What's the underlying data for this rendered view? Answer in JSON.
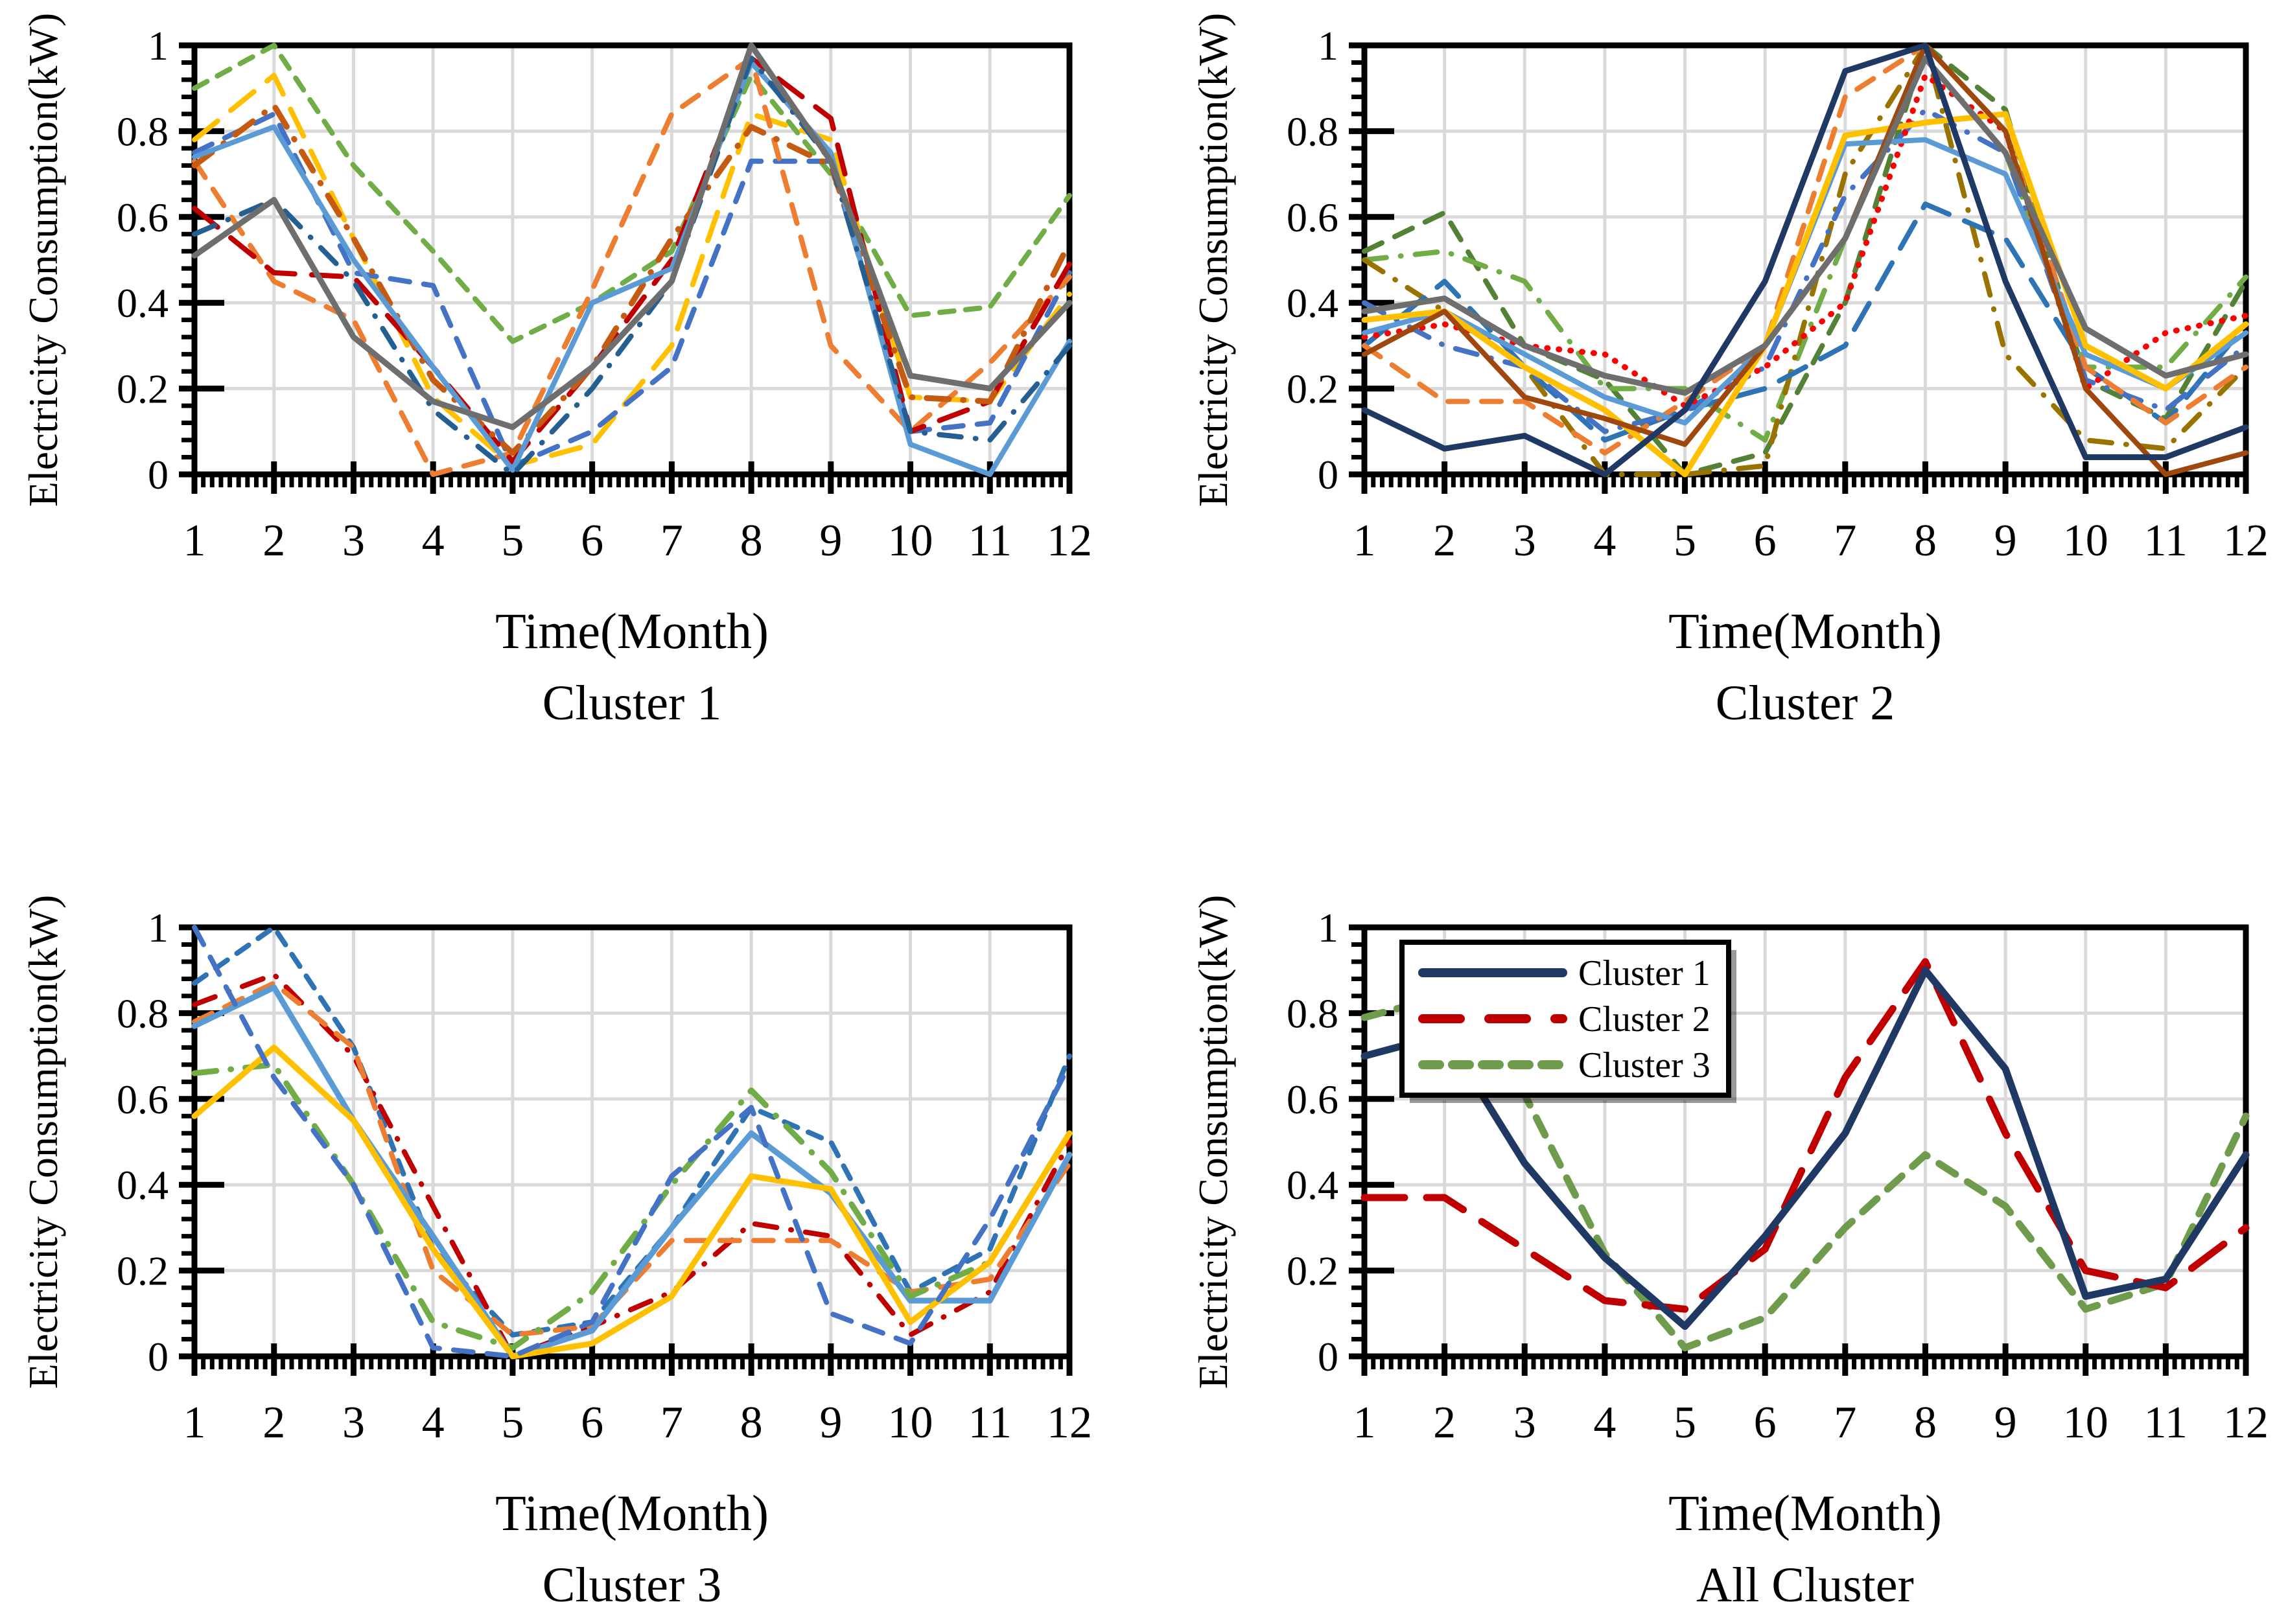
{
  "page": {
    "background": "#FFFFFF"
  },
  "figure": {
    "ylabel": "Electricity Consumption(kW)",
    "xlabel": "Time(Month)",
    "x_ticks": [
      "1",
      "2",
      "3",
      "4",
      "5",
      "6",
      "7",
      "8",
      "9",
      "10",
      "11",
      "12"
    ],
    "y_ticks": [
      "0",
      "0.2",
      "0.4",
      "0.6",
      "0.8",
      "1"
    ],
    "grid_color": "#D9D9D9",
    "axis_color": "#000000"
  },
  "chart_data": [
    {
      "type": "line",
      "title": "Cluster 1",
      "xlabel": "Time(Month)",
      "ylabel": "Electricity Consumption(kW)",
      "x": [
        1,
        2,
        3,
        4,
        5,
        6,
        7,
        8,
        9,
        10,
        11,
        12
      ],
      "ylim": [
        0,
        1
      ],
      "grid": true,
      "legend": null,
      "series": [
        {
          "color": "#70AD47",
          "style": "dash-dense",
          "width": 8,
          "values": [
            0.9,
            1.0,
            0.72,
            0.52,
            0.31,
            0.4,
            0.52,
            0.93,
            0.7,
            0.37,
            0.39,
            0.65
          ]
        },
        {
          "color": "#FFC000",
          "style": "dash-long",
          "width": 8,
          "values": [
            0.78,
            0.93,
            0.55,
            0.18,
            0.02,
            0.07,
            0.3,
            0.84,
            0.78,
            0.18,
            0.17,
            0.42
          ]
        },
        {
          "color": "#4472C4",
          "style": "dash",
          "width": 8,
          "values": [
            0.75,
            0.84,
            0.47,
            0.44,
            0.02,
            0.1,
            0.25,
            0.73,
            0.73,
            0.1,
            0.12,
            0.47
          ]
        },
        {
          "color": "#ED7D31",
          "style": "dash",
          "width": 8,
          "values": [
            0.73,
            0.45,
            0.36,
            0.0,
            0.05,
            0.43,
            0.84,
            0.97,
            0.3,
            0.1,
            0.26,
            0.46
          ]
        },
        {
          "color": "#C00000",
          "style": "dash-long",
          "width": 8,
          "values": [
            0.62,
            0.47,
            0.46,
            0.25,
            0.03,
            0.25,
            0.5,
            0.97,
            0.83,
            0.1,
            0.17,
            0.49
          ]
        },
        {
          "color": "#C55A11",
          "style": "dash-dot",
          "width": 9,
          "values": [
            0.72,
            0.86,
            0.55,
            0.22,
            0.05,
            0.25,
            0.55,
            0.81,
            0.72,
            0.18,
            0.17,
            0.54
          ]
        },
        {
          "color": "#5B9BD5",
          "style": "solid",
          "width": 8,
          "values": [
            0.74,
            0.81,
            0.5,
            0.25,
            0.01,
            0.4,
            0.48,
            0.96,
            0.75,
            0.07,
            0.0,
            0.31
          ]
        },
        {
          "color": "#255E91",
          "style": "dash-dot",
          "width": 8,
          "values": [
            0.56,
            0.64,
            0.45,
            0.15,
            0.0,
            0.2,
            0.45,
            0.97,
            0.73,
            0.1,
            0.08,
            0.3
          ]
        },
        {
          "color": "#6E6E6E",
          "style": "solid",
          "width": 9,
          "values": [
            0.51,
            0.64,
            0.32,
            0.17,
            0.11,
            0.25,
            0.45,
            1.0,
            0.73,
            0.23,
            0.2,
            0.4
          ]
        }
      ]
    },
    {
      "type": "line",
      "title": "Cluster 2",
      "xlabel": "Time(Month)",
      "ylabel": "Electricity Consumption(kW)",
      "x": [
        1,
        2,
        3,
        4,
        5,
        6,
        7,
        8,
        9,
        10,
        11,
        12
      ],
      "ylim": [
        0,
        1
      ],
      "grid": true,
      "legend": null,
      "series": [
        {
          "color": "#538135",
          "style": "dash",
          "width": 8,
          "values": [
            0.52,
            0.61,
            0.3,
            0.22,
            0.0,
            0.05,
            0.4,
            1.0,
            0.85,
            0.22,
            0.13,
            0.45
          ]
        },
        {
          "color": "#70AD47",
          "style": "dash-dot",
          "width": 8,
          "values": [
            0.5,
            0.52,
            0.45,
            0.2,
            0.2,
            0.08,
            0.55,
            0.97,
            0.75,
            0.25,
            0.25,
            0.46
          ]
        },
        {
          "color": "#997300",
          "style": "dash-dot",
          "width": 8,
          "values": [
            0.5,
            0.38,
            0.25,
            0.0,
            0.0,
            0.02,
            0.7,
            1.0,
            0.28,
            0.08,
            0.06,
            0.25
          ]
        },
        {
          "color": "#2E74B5",
          "style": "dash-long",
          "width": 8,
          "values": [
            0.3,
            0.45,
            0.25,
            0.08,
            0.15,
            0.2,
            0.3,
            0.63,
            0.55,
            0.25,
            0.12,
            0.35
          ]
        },
        {
          "color": "#4472C4",
          "style": "dash-dot",
          "width": 8,
          "values": [
            0.4,
            0.3,
            0.25,
            0.1,
            0.15,
            0.25,
            0.65,
            0.85,
            0.75,
            0.22,
            0.15,
            0.3
          ]
        },
        {
          "color": "#ED7D31",
          "style": "dash",
          "width": 8,
          "values": [
            0.3,
            0.17,
            0.17,
            0.05,
            0.17,
            0.3,
            0.88,
            1.0,
            0.8,
            0.25,
            0.12,
            0.25
          ]
        },
        {
          "color": "#FF0000",
          "style": "dot",
          "width": 9,
          "values": [
            0.32,
            0.35,
            0.3,
            0.28,
            0.16,
            0.25,
            0.4,
            0.93,
            0.8,
            0.2,
            0.33,
            0.37
          ]
        },
        {
          "color": "#5B9BD5",
          "style": "solid",
          "width": 8,
          "values": [
            0.33,
            0.38,
            0.28,
            0.18,
            0.12,
            0.3,
            0.77,
            0.78,
            0.7,
            0.28,
            0.2,
            0.33
          ]
        },
        {
          "color": "#FFC000",
          "style": "solid",
          "width": 9,
          "values": [
            0.36,
            0.38,
            0.25,
            0.15,
            0.0,
            0.3,
            0.79,
            0.82,
            0.84,
            0.3,
            0.2,
            0.35
          ]
        },
        {
          "color": "#9E480E",
          "style": "solid",
          "width": 8,
          "values": [
            0.28,
            0.38,
            0.18,
            0.13,
            0.07,
            0.3,
            0.55,
            1.0,
            0.8,
            0.2,
            0.0,
            0.05
          ]
        },
        {
          "color": "#6E6E6E",
          "style": "solid",
          "width": 9,
          "values": [
            0.38,
            0.41,
            0.3,
            0.23,
            0.19,
            0.3,
            0.55,
            0.97,
            0.75,
            0.34,
            0.23,
            0.28
          ]
        },
        {
          "color": "#1F3864",
          "style": "solid",
          "width": 9,
          "values": [
            0.15,
            0.06,
            0.09,
            0.0,
            0.15,
            0.45,
            0.94,
            1.0,
            0.45,
            0.04,
            0.04,
            0.11
          ]
        }
      ]
    },
    {
      "type": "line",
      "title": "Cluster 3",
      "xlabel": "Time(Month)",
      "ylabel": "Electricity Consumption(kW)",
      "x": [
        1,
        2,
        3,
        4,
        5,
        6,
        7,
        8,
        9,
        10,
        11,
        12
      ],
      "ylim": [
        0,
        1
      ],
      "grid": true,
      "legend": null,
      "series": [
        {
          "color": "#2E74B5",
          "style": "dash-dense",
          "width": 8,
          "values": [
            0.87,
            1.0,
            0.72,
            0.25,
            0.05,
            0.08,
            0.3,
            0.58,
            0.5,
            0.15,
            0.25,
            0.7
          ]
        },
        {
          "color": "#C00000",
          "style": "dash-dot",
          "width": 8,
          "values": [
            0.82,
            0.89,
            0.7,
            0.35,
            0.0,
            0.07,
            0.15,
            0.31,
            0.28,
            0.05,
            0.15,
            0.5
          ]
        },
        {
          "color": "#ED7D31",
          "style": "dash",
          "width": 8,
          "values": [
            0.78,
            0.87,
            0.72,
            0.2,
            0.05,
            0.07,
            0.27,
            0.27,
            0.27,
            0.15,
            0.18,
            0.45
          ]
        },
        {
          "color": "#5B9BD5",
          "style": "solid",
          "width": 9,
          "values": [
            0.77,
            0.86,
            0.55,
            0.28,
            0.0,
            0.06,
            0.3,
            0.52,
            0.38,
            0.13,
            0.13,
            0.47
          ]
        },
        {
          "color": "#70AD47",
          "style": "dash-dot",
          "width": 9,
          "values": [
            0.66,
            0.68,
            0.4,
            0.08,
            0.02,
            0.15,
            0.4,
            0.62,
            0.43,
            0.14,
            0.22,
            0.52
          ]
        },
        {
          "color": "#FFC000",
          "style": "solid",
          "width": 9,
          "values": [
            0.56,
            0.72,
            0.55,
            0.25,
            0.0,
            0.03,
            0.14,
            0.42,
            0.39,
            0.08,
            0.22,
            0.52
          ]
        },
        {
          "color": "#4472C4",
          "style": "dash",
          "width": 8,
          "values": [
            1.0,
            0.65,
            0.4,
            0.02,
            0.0,
            0.08,
            0.42,
            0.58,
            0.1,
            0.03,
            0.32,
            0.68
          ]
        }
      ]
    },
    {
      "type": "line",
      "title": "All Cluster",
      "xlabel": "Time(Month)",
      "ylabel": "Electricity Consumption(kW)",
      "x": [
        1,
        2,
        3,
        4,
        5,
        6,
        7,
        8,
        9,
        10,
        11,
        12
      ],
      "ylim": [
        0,
        1
      ],
      "grid": true,
      "legend": {
        "position": "top-left",
        "entries": [
          "Cluster 1",
          "Cluster 2",
          "Cluster 3"
        ]
      },
      "series": [
        {
          "name": "Cluster 3",
          "color": "#6F9B4D",
          "style": "dash",
          "width": 11,
          "values": [
            0.79,
            0.84,
            0.61,
            0.24,
            0.02,
            0.09,
            0.3,
            0.47,
            0.35,
            0.11,
            0.17,
            0.56
          ]
        },
        {
          "name": "Cluster 2",
          "color": "#C00000",
          "style": "dash-xlong",
          "width": 11,
          "values": [
            0.37,
            0.37,
            0.25,
            0.13,
            0.11,
            0.25,
            0.65,
            0.92,
            0.52,
            0.2,
            0.16,
            0.3
          ]
        },
        {
          "name": "Cluster 1",
          "color": "#1F3864",
          "style": "solid",
          "width": 11,
          "values": [
            0.7,
            0.75,
            0.45,
            0.23,
            0.07,
            0.28,
            0.52,
            0.9,
            0.67,
            0.14,
            0.18,
            0.47
          ]
        }
      ]
    }
  ]
}
